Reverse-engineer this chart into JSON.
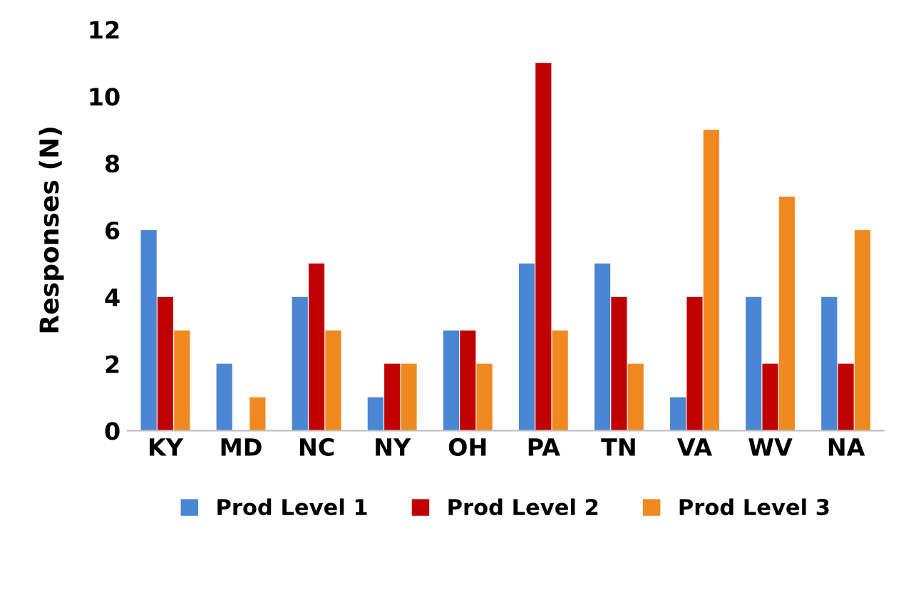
{
  "chart_data": {
    "type": "bar",
    "ylabel": "Responses (N)",
    "categories": [
      "KY",
      "MD",
      "NC",
      "NY",
      "OH",
      "PA",
      "TN",
      "VA",
      "WV",
      "NA"
    ],
    "series": [
      {
        "name": "Prod Level 1",
        "color": "#4a86d4",
        "values": [
          6,
          2,
          4,
          1,
          3,
          5,
          5,
          1,
          4,
          4
        ]
      },
      {
        "name": "Prod Level 2",
        "color": "#c00000",
        "values": [
          4,
          0,
          5,
          2,
          3,
          11,
          4,
          4,
          2,
          2
        ]
      },
      {
        "name": "Prod Level 3",
        "color": "#f0891f",
        "values": [
          3,
          1,
          3,
          2,
          2,
          3,
          2,
          9,
          7,
          6
        ]
      }
    ],
    "ylim": [
      0,
      12
    ],
    "yticks": [
      0,
      2,
      4,
      6,
      8,
      10,
      12
    ],
    "grid": false,
    "legend": "bottom"
  }
}
